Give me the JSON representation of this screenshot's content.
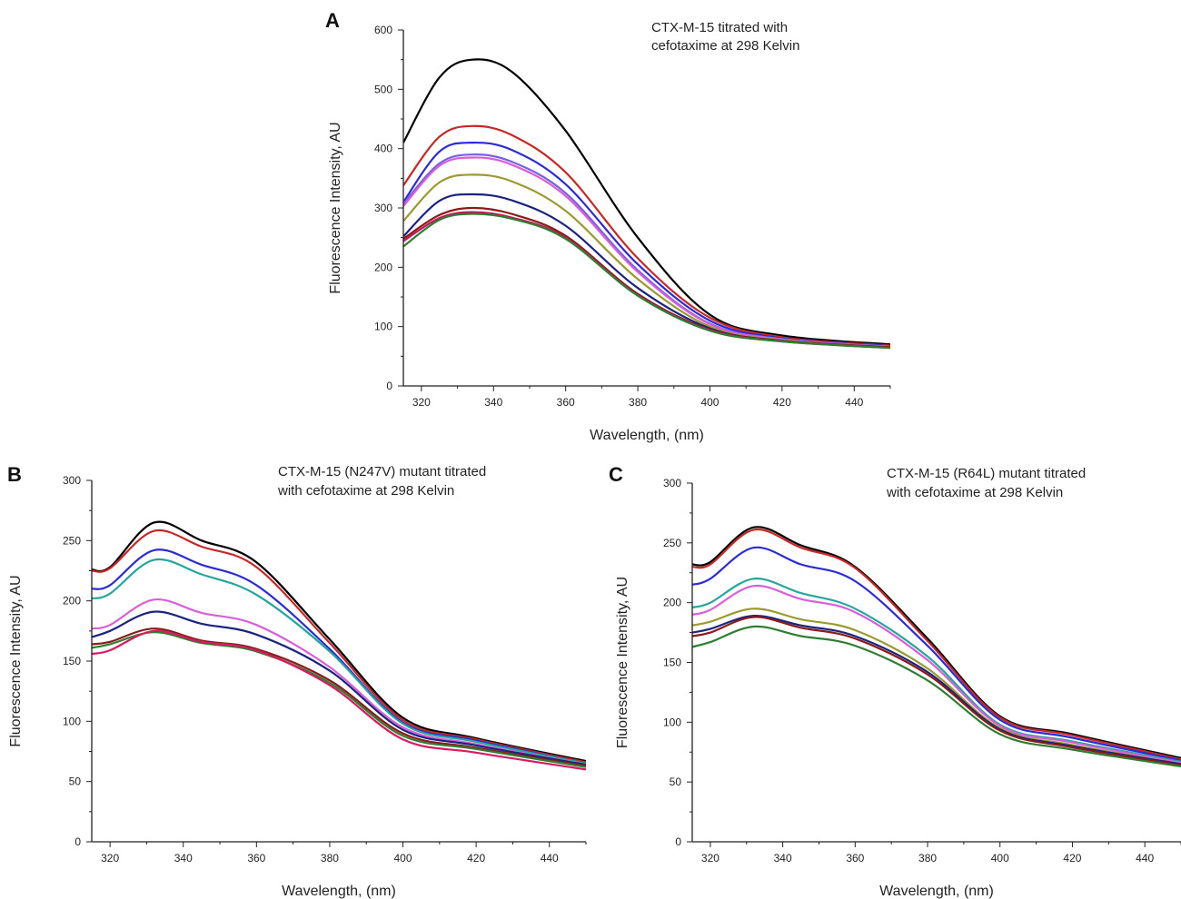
{
  "chart_data": [
    {
      "type": "line",
      "panel": "A",
      "annotation": [
        "CTX-M-15 titrated with",
        "cefotaxime at 298 Kelvin"
      ],
      "xlabel": "Wavelength, (nm)",
      "ylabel": "Fluorescence Intensity, AU",
      "xlim": [
        315,
        450
      ],
      "ylim": [
        0,
        600
      ],
      "xticks": [
        320,
        340,
        360,
        380,
        400,
        420,
        440
      ],
      "yticks": [
        0,
        100,
        200,
        300,
        400,
        500,
        600
      ],
      "x": [
        315,
        325,
        334,
        345,
        360,
        380,
        400,
        420,
        450
      ],
      "series": [
        {
          "color": "#000000",
          "values": [
            410,
            520,
            550,
            530,
            430,
            250,
            120,
            85,
            70
          ]
        },
        {
          "color": "#c62828",
          "values": [
            338,
            420,
            438,
            423,
            360,
            215,
            115,
            82,
            68
          ]
        },
        {
          "color": "#2b2bd6",
          "values": [
            310,
            395,
            410,
            398,
            340,
            205,
            110,
            80,
            67
          ]
        },
        {
          "color": "#7a5fe0",
          "values": [
            307,
            375,
            390,
            378,
            325,
            195,
            105,
            79,
            66
          ]
        },
        {
          "color": "#d75fd7",
          "values": [
            303,
            371,
            385,
            373,
            320,
            192,
            104,
            78,
            66
          ]
        },
        {
          "color": "#9a9a30",
          "values": [
            278,
            343,
            356,
            345,
            295,
            180,
            100,
            77,
            65
          ]
        },
        {
          "color": "#1a237e",
          "values": [
            252,
            312,
            323,
            313,
            270,
            165,
            97,
            76,
            65
          ]
        },
        {
          "color": "#8b1a1a",
          "values": [
            248,
            288,
            300,
            290,
            253,
            155,
            95,
            76,
            65
          ]
        },
        {
          "color": "#c2185b",
          "values": [
            244,
            283,
            293,
            284,
            250,
            153,
            94,
            75,
            64
          ]
        },
        {
          "color": "#2e7d32",
          "values": [
            235,
            280,
            290,
            282,
            248,
            152,
            93,
            75,
            64
          ]
        }
      ]
    },
    {
      "type": "line",
      "panel": "B",
      "annotation": [
        "CTX-M-15 (N247V) mutant titrated",
        "with cefotaxime at 298 Kelvin"
      ],
      "xlabel": "Wavelength, (nm)",
      "ylabel": "Fluorescence Intensity, AU",
      "xlim": [
        315,
        450
      ],
      "ylim": [
        0,
        300
      ],
      "xticks": [
        320,
        340,
        360,
        380,
        400,
        420,
        440
      ],
      "yticks": [
        0,
        50,
        100,
        150,
        200,
        250,
        300
      ],
      "x": [
        315,
        320,
        332,
        345,
        360,
        380,
        400,
        420,
        450
      ],
      "series": [
        {
          "color": "#000000",
          "values": [
            226,
            228,
            265,
            250,
            232,
            168,
            103,
            86,
            67
          ]
        },
        {
          "color": "#c62828",
          "values": [
            225,
            227,
            258,
            245,
            228,
            165,
            101,
            85,
            66
          ]
        },
        {
          "color": "#2b2bd6",
          "values": [
            210,
            213,
            242,
            230,
            213,
            160,
            99,
            84,
            65
          ]
        },
        {
          "color": "#26a69a",
          "values": [
            202,
            206,
            234,
            222,
            205,
            158,
            98,
            83,
            65
          ]
        },
        {
          "color": "#d75fd7",
          "values": [
            177,
            180,
            201,
            190,
            180,
            145,
            95,
            81,
            64
          ]
        },
        {
          "color": "#1a237e",
          "values": [
            170,
            175,
            191,
            181,
            172,
            142,
            93,
            80,
            64
          ]
        },
        {
          "color": "#8b1a1a",
          "values": [
            164,
            166,
            177,
            167,
            160,
            134,
            90,
            78,
            63
          ]
        },
        {
          "color": "#2e7d32",
          "values": [
            161,
            164,
            174,
            165,
            158,
            132,
            88,
            77,
            62
          ]
        },
        {
          "color": "#d81b60",
          "values": [
            156,
            159,
            175,
            166,
            159,
            130,
            85,
            74,
            60
          ]
        }
      ]
    },
    {
      "type": "line",
      "panel": "C",
      "annotation": [
        "CTX-M-15 (R64L) mutant titrated",
        "with cefotaxime at 298 Kelvin"
      ],
      "xlabel": "Wavelength, (nm)",
      "ylabel": "Fluorescence Intensity, AU",
      "xlim": [
        315,
        450
      ],
      "ylim": [
        0,
        300
      ],
      "xticks": [
        320,
        340,
        360,
        380,
        400,
        420,
        440
      ],
      "yticks": [
        0,
        50,
        100,
        150,
        200,
        250,
        300
      ],
      "x": [
        315,
        320,
        332,
        345,
        360,
        380,
        400,
        420,
        450
      ],
      "series": [
        {
          "color": "#000000",
          "values": [
            232,
            234,
            263,
            248,
            230,
            170,
            105,
            90,
            70
          ]
        },
        {
          "color": "#c62828",
          "values": [
            230,
            232,
            261,
            246,
            229,
            168,
            104,
            89,
            69
          ]
        },
        {
          "color": "#2b2bd6",
          "values": [
            215,
            220,
            246,
            232,
            218,
            164,
            102,
            87,
            68
          ]
        },
        {
          "color": "#26a69a",
          "values": [
            196,
            200,
            220,
            208,
            195,
            155,
            98,
            84,
            67
          ]
        },
        {
          "color": "#d75fd7",
          "values": [
            190,
            194,
            214,
            203,
            192,
            152,
            97,
            83,
            66
          ]
        },
        {
          "color": "#9a9a30",
          "values": [
            181,
            184,
            195,
            186,
            177,
            145,
            95,
            81,
            65
          ]
        },
        {
          "color": "#1a237e",
          "values": [
            175,
            178,
            189,
            181,
            172,
            142,
            94,
            80,
            65
          ]
        },
        {
          "color": "#8b1a1a",
          "values": [
            172,
            175,
            188,
            179,
            170,
            140,
            93,
            79,
            64
          ]
        },
        {
          "color": "#2e7d32",
          "values": [
            163,
            167,
            180,
            172,
            164,
            135,
            90,
            77,
            63
          ]
        }
      ]
    }
  ]
}
